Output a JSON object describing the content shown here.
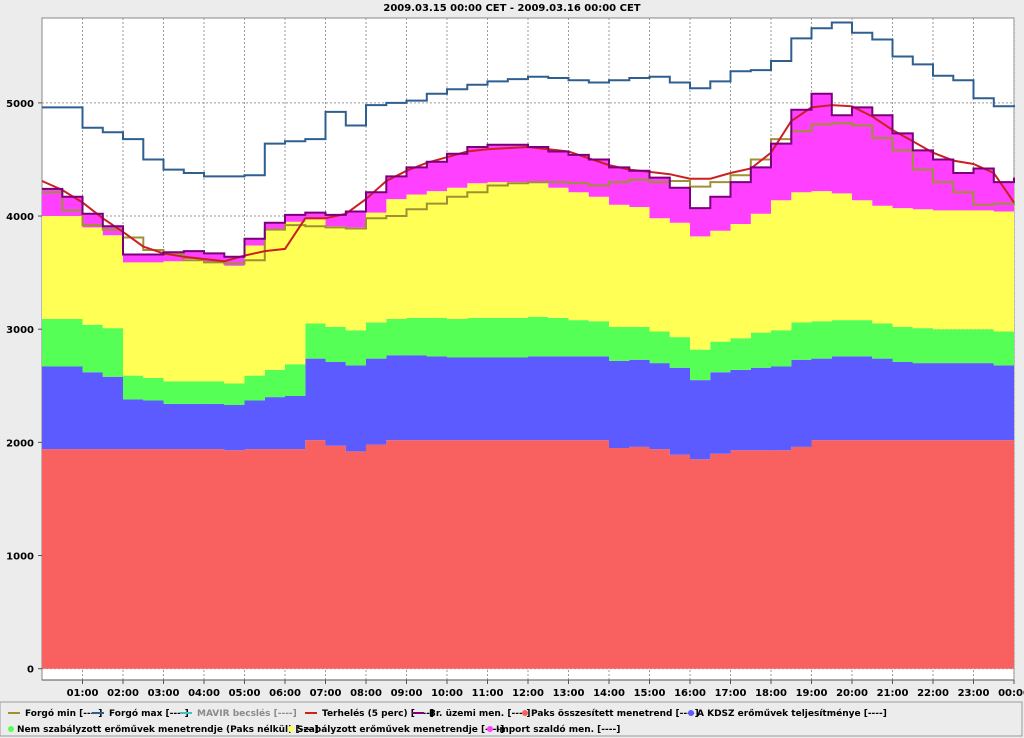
{
  "chart_data": {
    "type": "area",
    "title": "2009.03.15 00:00 CET - 2009.03.16 00:00 CET",
    "xlabel": "",
    "ylabel": "",
    "xlim": [
      0,
      24
    ],
    "ylim": [
      -100,
      5750
    ],
    "y_ticks": [
      0,
      1000,
      2000,
      3000,
      4000,
      5000
    ],
    "x_ticks": [
      "01:00",
      "02:00",
      "03:00",
      "04:00",
      "05:00",
      "06:00",
      "07:00",
      "08:00",
      "09:00",
      "10:00",
      "11:00",
      "12:00",
      "13:00",
      "14:00",
      "15:00",
      "16:00",
      "17:00",
      "18:00",
      "19:00",
      "20:00",
      "21:00",
      "22:00",
      "23:00",
      "00:00"
    ],
    "grid": true,
    "legend_position": "bottom",
    "x": [
      0,
      0.5,
      1,
      1.5,
      2,
      2.5,
      3,
      3.5,
      4,
      4.5,
      5,
      5.5,
      6,
      6.5,
      7,
      7.5,
      8,
      8.5,
      9,
      9.5,
      10,
      10.5,
      11,
      11.5,
      12,
      12.5,
      13,
      13.5,
      14,
      14.5,
      15,
      15.5,
      16,
      16.5,
      17,
      17.5,
      18,
      18.5,
      19,
      19.5,
      20,
      20.5,
      21,
      21.5,
      22,
      22.5,
      23,
      23.5,
      24
    ],
    "stacked_series": [
      {
        "name": "Paks összesített menetrend [----]",
        "color": "#f96161",
        "values": [
          1940,
          1940,
          1940,
          1940,
          1940,
          1940,
          1940,
          1940,
          1940,
          1930,
          1940,
          1940,
          1940,
          2020,
          1970,
          1920,
          1980,
          2020,
          2020,
          2020,
          2020,
          2020,
          2020,
          2020,
          2020,
          2020,
          2020,
          2020,
          1950,
          1960,
          1940,
          1890,
          1850,
          1900,
          1930,
          1930,
          1930,
          1960,
          2020,
          2020,
          2020,
          2020,
          2020,
          2020,
          2020,
          2020,
          2020,
          2020,
          2020
        ]
      },
      {
        "name": "A KDSZ erőművek teljesítménye [----]",
        "color": "#5b5bff",
        "values": [
          730,
          730,
          680,
          640,
          440,
          430,
          400,
          400,
          400,
          400,
          430,
          460,
          470,
          720,
          740,
          760,
          760,
          750,
          750,
          740,
          730,
          730,
          730,
          730,
          740,
          740,
          740,
          740,
          770,
          770,
          760,
          770,
          700,
          720,
          710,
          730,
          740,
          770,
          720,
          740,
          740,
          720,
          690,
          680,
          680,
          680,
          680,
          660,
          650
        ]
      },
      {
        "name": "Nem szabályzott erőművek menetrendje (Paks nélkül) [----]",
        "color": "#55ff55",
        "values": [
          420,
          420,
          420,
          430,
          210,
          200,
          200,
          200,
          200,
          190,
          220,
          240,
          280,
          310,
          310,
          310,
          320,
          320,
          330,
          340,
          340,
          350,
          350,
          350,
          350,
          340,
          320,
          310,
          300,
          290,
          280,
          270,
          270,
          270,
          280,
          310,
          320,
          330,
          330,
          320,
          320,
          310,
          310,
          310,
          300,
          300,
          300,
          300,
          310
        ]
      },
      {
        "name": "Szabályzott erőművek menetrendje [----]",
        "color": "#ffff55",
        "values": [
          910,
          910,
          860,
          820,
          1000,
          1020,
          1060,
          1080,
          1050,
          1040,
          1150,
          1240,
          1260,
          920,
          890,
          910,
          970,
          1060,
          1090,
          1120,
          1160,
          1190,
          1200,
          1200,
          1180,
          1150,
          1130,
          1100,
          1080,
          1060,
          1000,
          1010,
          1000,
          980,
          1010,
          1050,
          1150,
          1150,
          1150,
          1120,
          1060,
          1040,
          1050,
          1050,
          1050,
          1050,
          1050,
          1060,
          1060
        ]
      },
      {
        "name": "Import szaldó men. [----]",
        "color": "#ff40ff",
        "values": [
          240,
          170,
          120,
          80,
          70,
          70,
          80,
          70,
          80,
          80,
          60,
          60,
          60,
          60,
          100,
          140,
          180,
          200,
          240,
          260,
          300,
          320,
          330,
          330,
          320,
          320,
          330,
          330,
          330,
          320,
          360,
          310,
          250,
          300,
          370,
          410,
          500,
          730,
          860,
          690,
          820,
          800,
          660,
          520,
          450,
          330,
          370,
          260,
          300
        ]
      }
    ],
    "line_series": [
      {
        "name": "Forgó min [----]",
        "color": "#a09035",
        "values": [
          4210,
          4050,
          3920,
          3880,
          3810,
          3700,
          3660,
          3610,
          3590,
          3580,
          3610,
          3880,
          3920,
          3910,
          3900,
          3890,
          3980,
          4000,
          4060,
          4110,
          4170,
          4210,
          4270,
          4290,
          4300,
          4300,
          4290,
          4270,
          4300,
          4320,
          4300,
          4310,
          4260,
          4300,
          4360,
          4500,
          4680,
          4750,
          4810,
          4820,
          4800,
          4690,
          4580,
          4410,
          4300,
          4210,
          4100,
          4110,
          4100
        ]
      },
      {
        "name": "Forgó max [----]",
        "color": "#2f5f90",
        "values": [
          4960,
          4960,
          4780,
          4740,
          4680,
          4500,
          4410,
          4380,
          4350,
          4350,
          4360,
          4640,
          4660,
          4680,
          4920,
          4800,
          4980,
          5000,
          5020,
          5080,
          5120,
          5160,
          5190,
          5210,
          5230,
          5220,
          5200,
          5180,
          5200,
          5220,
          5230,
          5180,
          5130,
          5190,
          5280,
          5290,
          5370,
          5570,
          5660,
          5710,
          5620,
          5560,
          5410,
          5340,
          5240,
          5200,
          5040,
          4970,
          4980
        ]
      },
      {
        "name": "Terhelés (5 perc) [----]",
        "color": "#cc2020",
        "values": [
          4310,
          4230,
          4120,
          3980,
          3860,
          3730,
          3670,
          3640,
          3620,
          3600,
          3650,
          3690,
          3710,
          3980,
          3980,
          4020,
          4150,
          4310,
          4400,
          4470,
          4520,
          4570,
          4590,
          4600,
          4610,
          4590,
          4570,
          4510,
          4450,
          4410,
          4390,
          4370,
          4330,
          4330,
          4380,
          4420,
          4560,
          4840,
          4960,
          4980,
          4970,
          4880,
          4760,
          4660,
          4560,
          4490,
          4460,
          4380,
          4120
        ]
      },
      {
        "name": "Br. üzemi men. [----]",
        "color": "#7b007b",
        "from_stack_top": true
      }
    ],
    "legend_entries": [
      {
        "label": "Forgó min [----]",
        "color": "#a09035",
        "kind": "line"
      },
      {
        "label": "Forgó max [----]",
        "color": "#2f5f90",
        "kind": "line"
      },
      {
        "label": "MAVIR becslés [----]",
        "color": "#40c0c0",
        "kind": "line",
        "muted": true
      },
      {
        "label": "Terhelés (5 perc) [----]",
        "color": "#cc2020",
        "kind": "line"
      },
      {
        "label": "Br. üzemi men. [----]",
        "color": "#7b007b",
        "kind": "line"
      },
      {
        "label": "Paks összesített menetrend [----]",
        "color": "#f96161",
        "kind": "dot"
      },
      {
        "label": "A KDSZ erőművek teljesítménye [----]",
        "color": "#5b5bff",
        "kind": "dot"
      },
      {
        "label": "Nem szabályzott erőművek menetrendje (Paks nélkül) [----]",
        "color": "#55ff55",
        "kind": "dot"
      },
      {
        "label": "Szabályzott erőművek menetrendje [----]",
        "color": "#ffff55",
        "kind": "dot"
      },
      {
        "label": "Import szaldó men. [----]",
        "color": "#ff40ff",
        "kind": "dot"
      }
    ]
  }
}
